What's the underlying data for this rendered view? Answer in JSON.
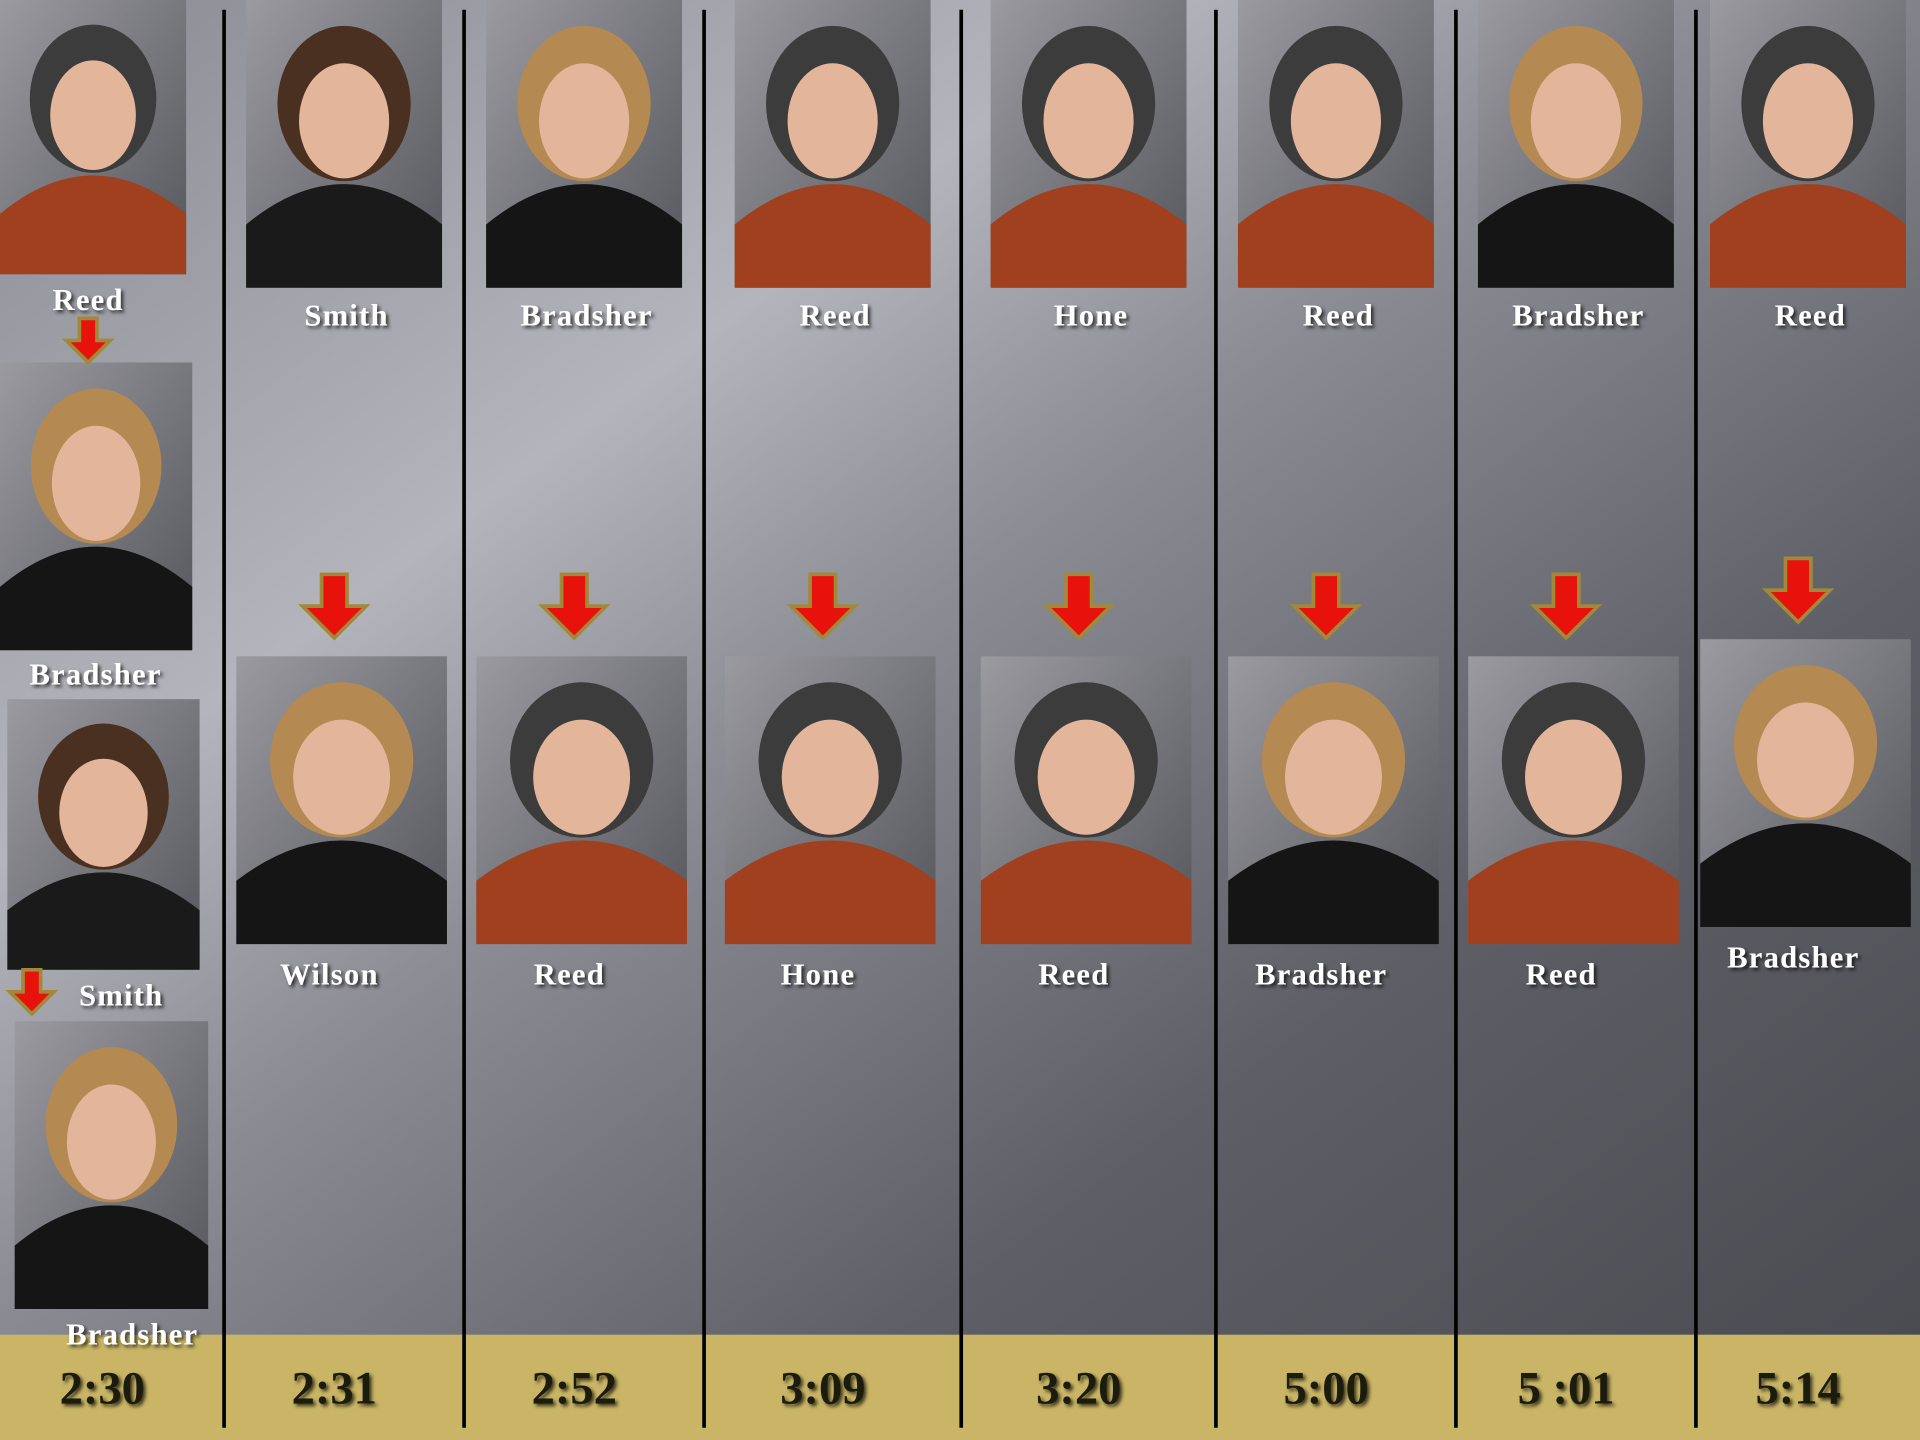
{
  "columns": [
    {
      "time": "2:30",
      "people": [
        "Reed",
        "Bradsher",
        "Smith",
        "Bradsher"
      ]
    },
    {
      "time": "2:31",
      "people": [
        "Smith",
        "Wilson"
      ]
    },
    {
      "time": "2:52",
      "people": [
        "Bradsher",
        "Reed"
      ]
    },
    {
      "time": "3:09",
      "people": [
        "Reed",
        "Hone"
      ]
    },
    {
      "time": "3:20",
      "people": [
        "Hone",
        "Reed"
      ]
    },
    {
      "time": "5:00",
      "people": [
        "Reed",
        "Bradsher"
      ]
    },
    {
      "time": "5 :01",
      "people": [
        "Bradsher",
        "Reed"
      ]
    },
    {
      "time": "5:14",
      "people": [
        "Reed",
        "Bradsher"
      ]
    }
  ]
}
